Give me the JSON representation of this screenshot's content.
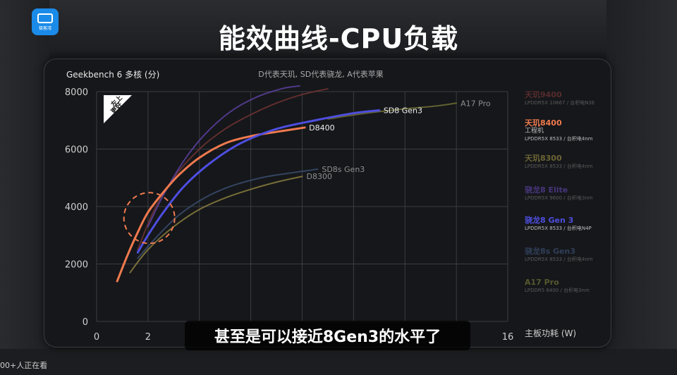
{
  "page_title": "能效曲线-CPU负载",
  "logo_text": "极客湾",
  "caption": "甚至是可以接近8Gen3的水平了",
  "watch_count": "00+人正在看",
  "chart_data": {
    "type": "line",
    "title": "Geekbench 6 多核 (分)",
    "subtitle": "D代表天玑, SD代表骁龙, A代表苹果",
    "xlabel": "主板功耗 (W)",
    "ylabel": "",
    "xlim": [
      0,
      16
    ],
    "ylim": [
      0,
      8000
    ],
    "x_ticks": [
      0,
      2,
      16
    ],
    "x_grid": [
      0,
      2,
      4,
      6,
      8,
      10,
      12,
      14,
      16
    ],
    "y_ticks": [
      0,
      2000,
      4000,
      6000,
      8000
    ],
    "grid": true,
    "legend_position": "right",
    "badge": [
      "左上",
      "更好"
    ],
    "series": [
      {
        "name": "天玑9400",
        "note": "",
        "spec": "LPDDR5X 10667 / 台积电N3E",
        "color": "#6e3333",
        "emphasis": false,
        "label": "",
        "x": [
          1.6,
          2.2,
          3.0,
          4.0,
          5.0,
          6.0,
          7.0,
          8.0,
          9.0
        ],
        "y": [
          2500,
          3800,
          5000,
          6000,
          6700,
          7200,
          7600,
          7900,
          8100
        ]
      },
      {
        "name": "天玑8400",
        "note": "工程机",
        "spec": "LPDDR5X 8533 / 台积电4nm",
        "color": "#f07a4e",
        "emphasis": true,
        "label": "D8400",
        "x": [
          0.8,
          1.2,
          1.6,
          2.0,
          2.6,
          3.2,
          4.0,
          5.0,
          6.0,
          7.0,
          8.1
        ],
        "y": [
          1400,
          2300,
          3100,
          3800,
          4500,
          5100,
          5700,
          6200,
          6450,
          6600,
          6750
        ]
      },
      {
        "name": "天玑8300",
        "note": "",
        "spec": "LPDDR5X 8533 / 台积电4nm",
        "color": "#8a7e3e",
        "emphasis": false,
        "label": "D8300",
        "x": [
          1.3,
          2.0,
          3.0,
          4.0,
          5.0,
          6.0,
          7.0,
          8.0
        ],
        "y": [
          1700,
          2500,
          3300,
          3900,
          4300,
          4600,
          4850,
          5050
        ]
      },
      {
        "name": "骁龙8 Elite",
        "note": "",
        "spec": "LPDDR5X 9600 / 台积电3nm",
        "color": "#5a3f9e",
        "emphasis": false,
        "label": "",
        "x": [
          2.0,
          2.6,
          3.4,
          4.2,
          5.2,
          6.2,
          7.2,
          7.9
        ],
        "y": [
          3300,
          4400,
          5600,
          6500,
          7300,
          7800,
          8100,
          8200
        ]
      },
      {
        "name": "骁龙8 Gen 3",
        "note": "",
        "spec": "LPDDR5X 8533 / 台积电N4P",
        "color": "#4e4ee0",
        "emphasis": true,
        "label": "SD8 Gen3",
        "x": [
          1.6,
          2.0,
          2.6,
          3.4,
          4.4,
          5.6,
          7.0,
          8.5,
          10.0,
          11.0
        ],
        "y": [
          2400,
          3000,
          3800,
          4700,
          5500,
          6200,
          6700,
          7000,
          7250,
          7350
        ]
      },
      {
        "name": "骁龙8s Gen3",
        "note": "",
        "spec": "LPDDR5X 8533 / 台积电4nm",
        "color": "#3a4c6e",
        "emphasis": false,
        "label": "SD8s Gen3",
        "x": [
          1.6,
          2.4,
          3.2,
          4.2,
          5.2,
          6.4,
          7.4,
          8.6
        ],
        "y": [
          2200,
          3000,
          3700,
          4300,
          4700,
          5000,
          5150,
          5300
        ]
      },
      {
        "name": "A17 Pro",
        "note": "",
        "spec": "LPDDR5 6400 / 台积电3nm",
        "color": "#6e6e36",
        "emphasis": false,
        "label": "A17 Pro",
        "x": [
          9.0,
          10.5,
          12.0,
          13.2,
          14.0
        ],
        "y": [
          7050,
          7250,
          7400,
          7500,
          7600
        ]
      }
    ]
  }
}
